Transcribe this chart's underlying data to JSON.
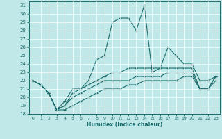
{
  "title": "",
  "xlabel": "Humidex (Indice chaleur)",
  "bg_color": "#c0e8e8",
  "line_color": "#1a6b6b",
  "grid_color": "#ffffff",
  "ylim": [
    18,
    31.5
  ],
  "xlim": [
    -0.5,
    23.5
  ],
  "yticks": [
    18,
    19,
    20,
    21,
    22,
    23,
    24,
    25,
    26,
    27,
    28,
    29,
    30,
    31
  ],
  "xticks": [
    0,
    1,
    2,
    3,
    4,
    5,
    6,
    7,
    8,
    9,
    10,
    11,
    12,
    13,
    14,
    15,
    16,
    17,
    18,
    19,
    20,
    21,
    22,
    23
  ],
  "series": [
    {
      "x": [
        0,
        1,
        2,
        3,
        4,
        5,
        6,
        7,
        8,
        9,
        10,
        11,
        12,
        13,
        14,
        15,
        16,
        17,
        18,
        19,
        20,
        21,
        22,
        23
      ],
      "y": [
        22,
        21.5,
        20.5,
        18.5,
        19.5,
        21.0,
        21.0,
        22.0,
        24.5,
        25.0,
        29.0,
        29.5,
        29.5,
        28.0,
        31.0,
        23.0,
        23.5,
        26.0,
        25.0,
        24.0,
        24.0,
        22.0,
        22.0,
        22.5
      ]
    },
    {
      "x": [
        0,
        1,
        2,
        3,
        4,
        5,
        6,
        7,
        8,
        9,
        10,
        11,
        12,
        13,
        14,
        15,
        16,
        17,
        18,
        19,
        20,
        21,
        22,
        23
      ],
      "y": [
        22,
        21.5,
        20.5,
        18.5,
        19.0,
        20.5,
        21.0,
        21.5,
        22.0,
        22.5,
        23.0,
        23.0,
        23.5,
        23.5,
        23.5,
        23.5,
        23.5,
        23.5,
        23.5,
        23.5,
        23.5,
        21.0,
        21.0,
        22.5
      ]
    },
    {
      "x": [
        0,
        1,
        2,
        3,
        4,
        5,
        6,
        7,
        8,
        9,
        10,
        11,
        12,
        13,
        14,
        15,
        16,
        17,
        18,
        19,
        20,
        21,
        22,
        23
      ],
      "y": [
        22,
        21.5,
        20.5,
        18.5,
        19.0,
        20.0,
        20.5,
        21.0,
        21.5,
        22.0,
        22.0,
        22.0,
        22.0,
        22.5,
        22.5,
        22.5,
        22.5,
        23.0,
        23.0,
        23.0,
        23.0,
        21.0,
        21.0,
        22.5
      ]
    },
    {
      "x": [
        0,
        1,
        2,
        3,
        4,
        5,
        6,
        7,
        8,
        9,
        10,
        11,
        12,
        13,
        14,
        15,
        16,
        17,
        18,
        19,
        20,
        21,
        22,
        23
      ],
      "y": [
        22,
        21.5,
        20.5,
        18.5,
        18.5,
        19.0,
        19.5,
        20.0,
        20.5,
        21.0,
        21.0,
        21.0,
        21.5,
        21.5,
        22.0,
        22.0,
        22.0,
        22.0,
        22.0,
        22.5,
        22.5,
        21.0,
        21.0,
        22.0
      ]
    }
  ]
}
